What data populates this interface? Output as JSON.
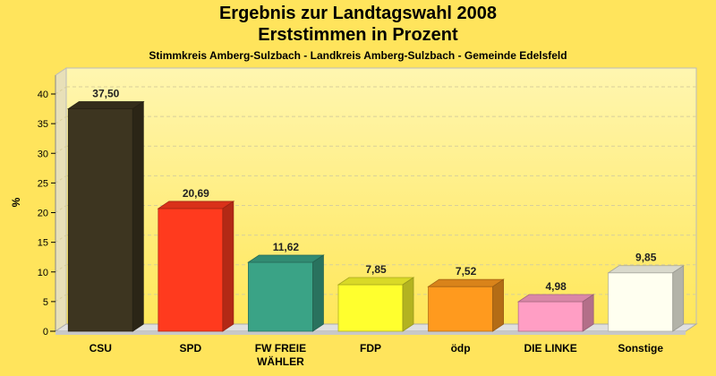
{
  "chart_data": {
    "type": "bar",
    "title": "Ergebnis zur Landtagswahl 2008",
    "subtitle": "Erststimmen in Prozent",
    "caption": "Stimmkreis Amberg-Sulzbach - Landkreis Amberg-Sulzbach - Gemeinde Edelsfeld",
    "ylabel": "%",
    "ylim": [
      0,
      40
    ],
    "yticks": [
      0,
      5,
      10,
      15,
      20,
      25,
      30,
      35,
      40
    ],
    "grid": true,
    "categories": [
      [
        "CSU"
      ],
      [
        "SPD"
      ],
      [
        "FW FREIE",
        "WÄHLER"
      ],
      [
        "FDP"
      ],
      [
        "ödp"
      ],
      [
        "DIE LINKE"
      ],
      [
        "Sonstige"
      ]
    ],
    "values": [
      37.5,
      20.69,
      11.62,
      7.85,
      7.52,
      4.98,
      9.85
    ],
    "value_labels": [
      "37,50",
      "20,69",
      "11,62",
      "7,85",
      "7,52",
      "4,98",
      "9,85"
    ],
    "colors": [
      "#3d3520",
      "#ff3a1e",
      "#3aa386",
      "#ffff2e",
      "#ff9a1e",
      "#ff9ec4",
      "#fffff0"
    ]
  }
}
